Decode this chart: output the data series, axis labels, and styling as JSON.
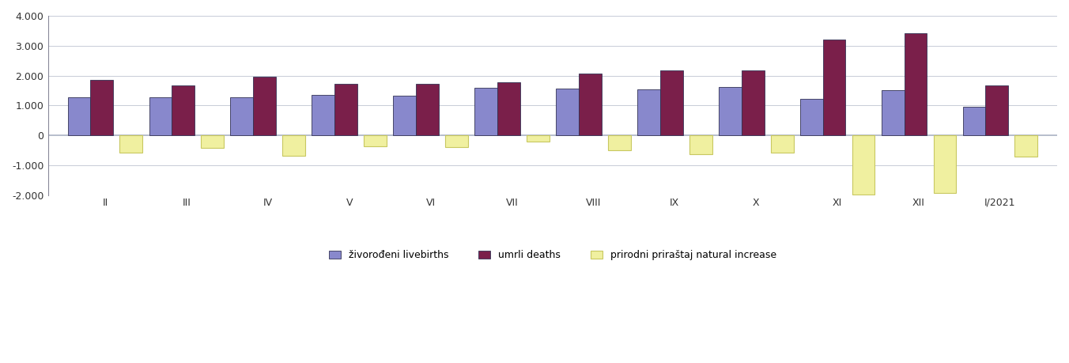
{
  "categories": [
    "II",
    "III",
    "IV",
    "V",
    "VI",
    "VII",
    "VIII",
    "IX",
    "X",
    "XI",
    "XII",
    "I/2021"
  ],
  "livebirths": [
    1280,
    1270,
    1270,
    1350,
    1320,
    1580,
    1570,
    1550,
    1610,
    1210,
    1510,
    960
  ],
  "deaths": [
    1850,
    1680,
    1960,
    1720,
    1720,
    1790,
    2070,
    2180,
    2180,
    3200,
    3430,
    1680
  ],
  "natural_increase": [
    -570,
    -410,
    -690,
    -370,
    -400,
    -210,
    -500,
    -630,
    -570,
    -1990,
    -1920,
    -720
  ],
  "livebirth_color": "#8888cc",
  "death_color": "#7a1f4a",
  "natural_color": "#f0f0a0",
  "natural_edge_color": "#c8c860",
  "bar_edge_color": "#333355",
  "ylim_min": -2000,
  "ylim_max": 4000,
  "ytick_step": 1000,
  "background_color": "#ffffff",
  "grid_color": "#b0b8c8",
  "zero_line_color": "#b0b8c8",
  "legend_labels": [
    "živorođeni livebirths",
    "umrli deaths",
    "prirodni priraštaj natural increase"
  ]
}
